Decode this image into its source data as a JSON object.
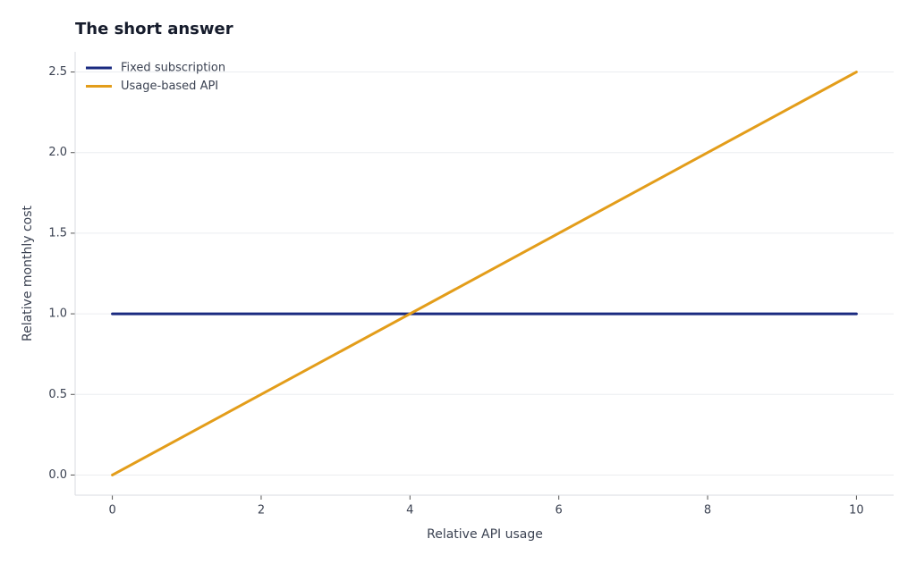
{
  "chart_data": {
    "type": "line",
    "title": "The short answer",
    "x_label": "Relative API usage",
    "y_label": "Relative monthly cost",
    "x": [
      0,
      10
    ],
    "series": [
      {
        "name": "Fixed subscription",
        "color": "#1a2a80",
        "values": [
          1,
          1
        ]
      },
      {
        "name": "Usage-based API",
        "color": "#e39d1a",
        "values": [
          0,
          2.5
        ]
      }
    ],
    "xlim": [
      -0.5,
      10.5
    ],
    "xticks": [
      0,
      2,
      4,
      6,
      8,
      10
    ],
    "ylim": [
      -0.125,
      2.625
    ],
    "yticks": [
      {
        "value": 0,
        "label": "0.0"
      },
      0.5,
      {
        "value": 1,
        "label": "1.0"
      },
      1.5,
      {
        "value": 2,
        "label": "2.0"
      },
      2.5
    ],
    "grid": true,
    "legend": "upper left"
  }
}
